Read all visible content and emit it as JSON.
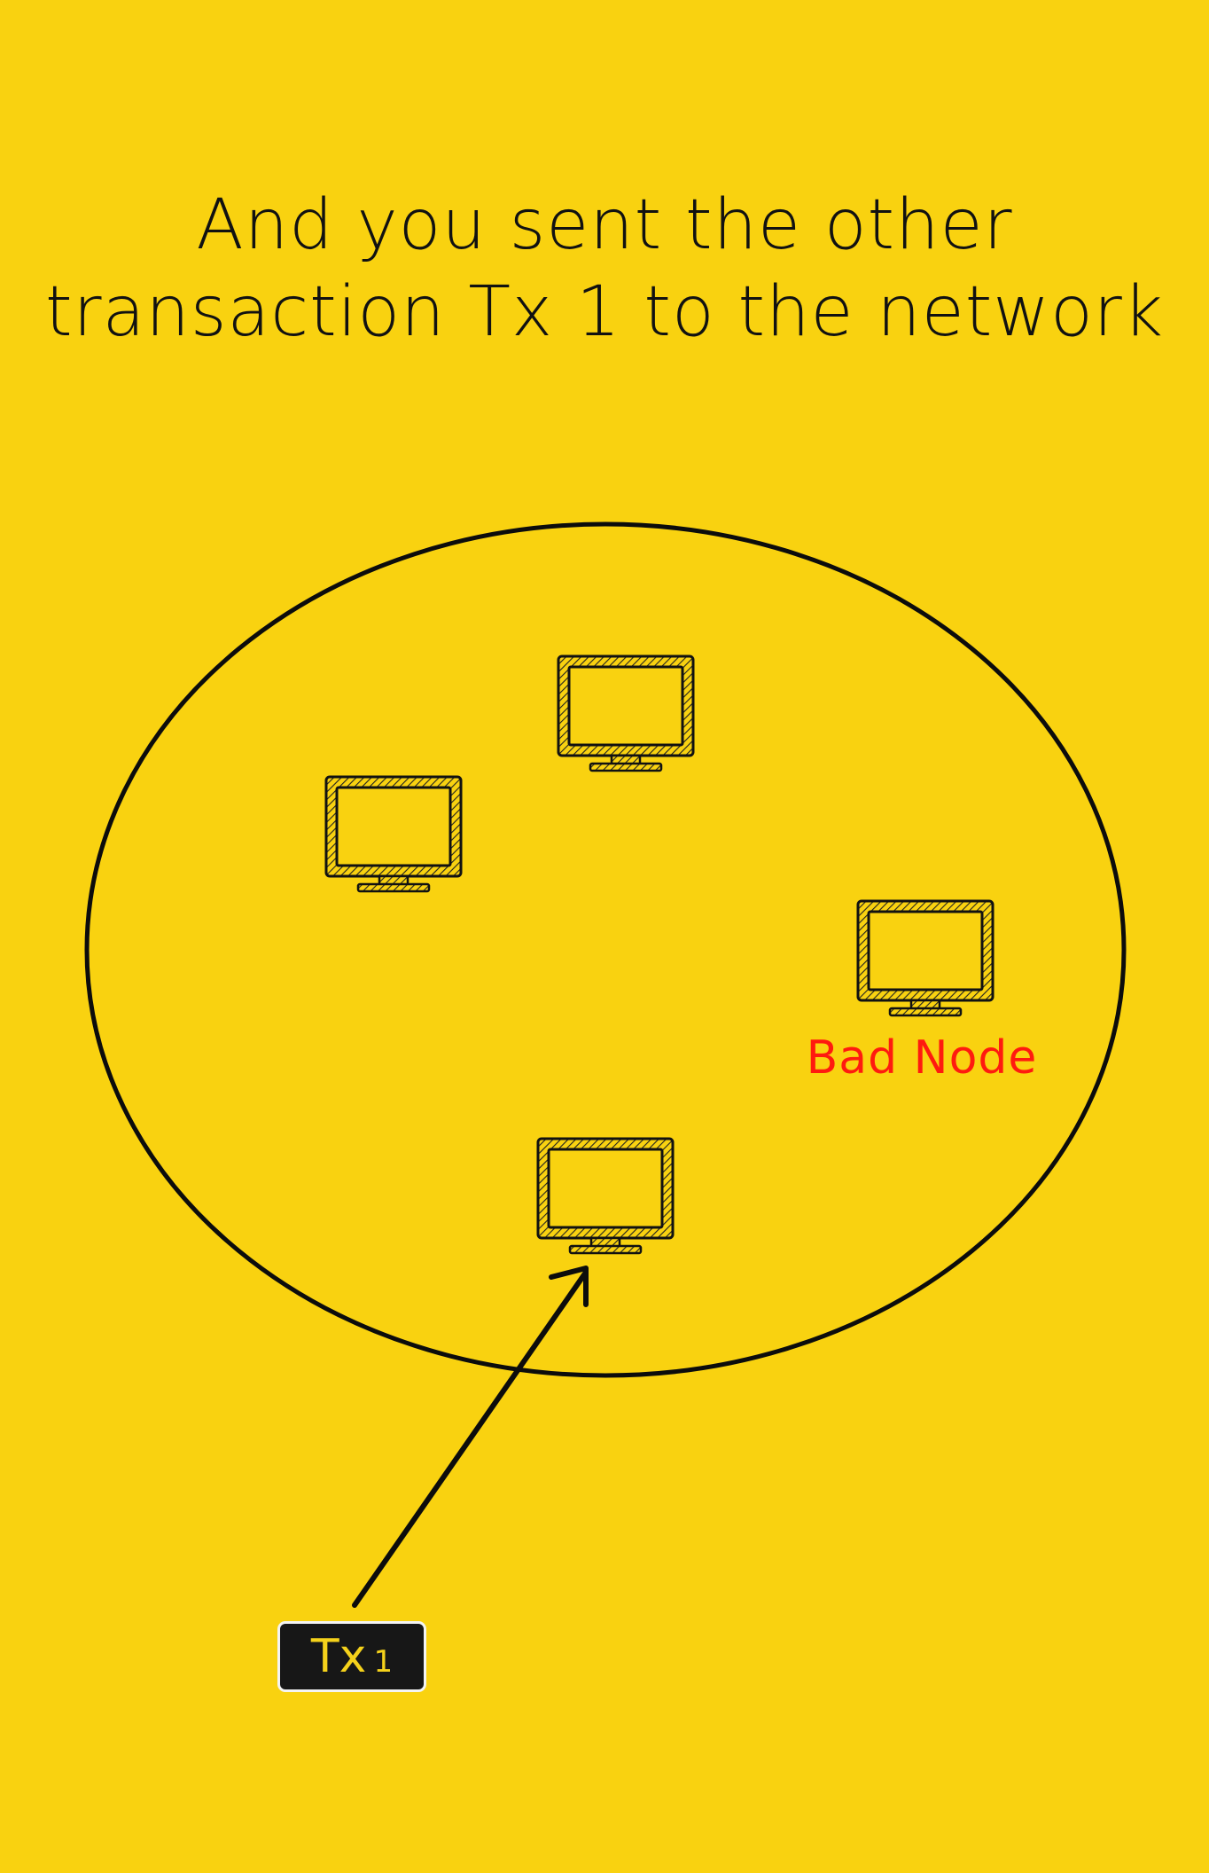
{
  "heading": {
    "line1": "And you sent the other",
    "line2": "transaction Tx 1 to the network"
  },
  "network": {
    "nodes": [
      {
        "id": "node-top",
        "label": ""
      },
      {
        "id": "node-left",
        "label": ""
      },
      {
        "id": "node-right",
        "label": "Bad Node"
      },
      {
        "id": "node-bottom",
        "label": ""
      }
    ],
    "bad_node_label": "Bad Node",
    "label_color": "#ff1a0f"
  },
  "transaction": {
    "name": "Tx",
    "index": "1",
    "target": "node-bottom"
  },
  "colors": {
    "background": "#f9d210",
    "ink": "#111111",
    "badge": "#171717",
    "badge_text": "#f5d21b"
  }
}
